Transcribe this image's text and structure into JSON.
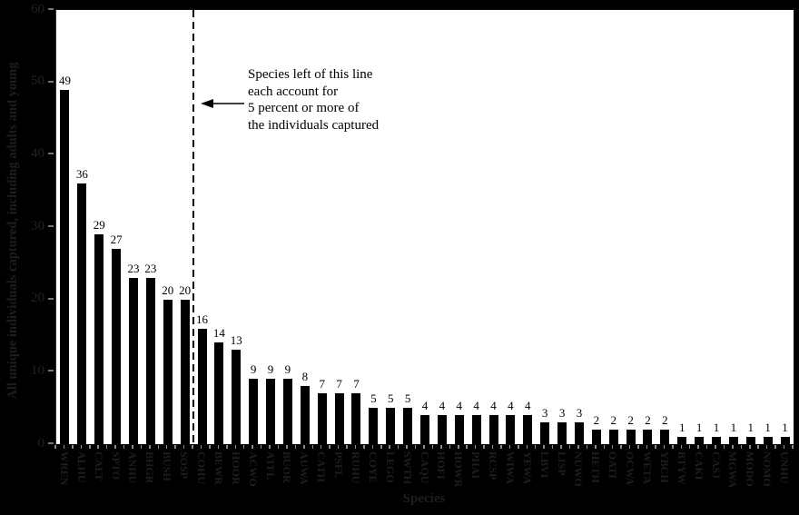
{
  "chart_data": {
    "type": "bar",
    "title": "",
    "xlabel": "Species",
    "ylabel": "All unique individuals captured, including adults and young",
    "ylim": [
      0,
      60
    ],
    "yticks": [
      0,
      10,
      20,
      30,
      40,
      50,
      60
    ],
    "grid": false,
    "legend": null,
    "bar_color": "#000000",
    "categories": [
      "WREN",
      "ALHU",
      "CALT",
      "SPTO",
      "ANHU",
      "BHGR",
      "BUSH",
      "SOSP",
      "COHU",
      "BEWR",
      "HOOR",
      "ACWO",
      "ATFL",
      "BUOR",
      "AUWA",
      "CATH",
      "PSFL",
      "RUHU",
      "COYE",
      "LEGO",
      "SWTH",
      "CAQU",
      "HOFI",
      "HOWR",
      "PHAI",
      "RCSP",
      "WIWA",
      "YEWA",
      "LBVI",
      "LISP",
      "NUWO",
      "HETH",
      "OATI",
      "OCWA",
      "WETA",
      "YBCH",
      "BTYW",
      "CAKI",
      "CASJ",
      "MGWA",
      "MODO",
      "NOMO",
      "UNHU"
    ],
    "values": [
      49,
      36,
      29,
      27,
      23,
      23,
      20,
      20,
      16,
      14,
      13,
      9,
      9,
      9,
      8,
      7,
      7,
      7,
      5,
      5,
      5,
      4,
      4,
      4,
      4,
      4,
      4,
      4,
      3,
      3,
      3,
      2,
      2,
      2,
      2,
      2,
      1,
      1,
      1,
      1,
      1,
      1,
      1
    ],
    "annotation": {
      "text": "Species left of this line\neach account for\n5 percent or more of\nthe individuals captured",
      "divider_after_category": "SOSP"
    }
  },
  "colors": {
    "background": "#000000",
    "plot_background": "#ffffff",
    "bar": "#000000",
    "outside_text": "#1e1e1e",
    "tick": "#8a8a8a"
  }
}
